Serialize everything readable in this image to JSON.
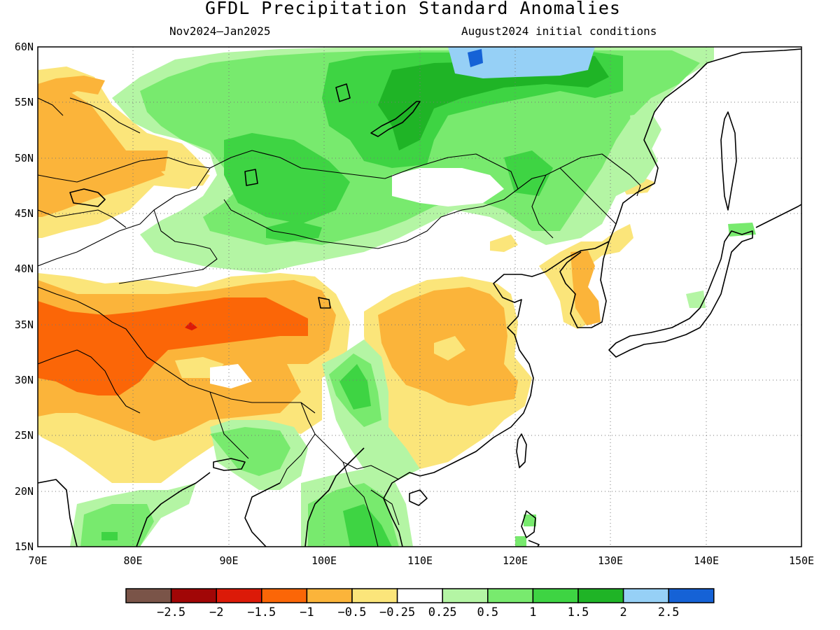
{
  "title": "GFDL Precipitation Standard Anomalies",
  "subtitle_left": "Nov2024–Jan2025",
  "subtitle_right": "August2024 initial conditions",
  "lat_ticks": [
    "15N",
    "20N",
    "25N",
    "30N",
    "35N",
    "40N",
    "45N",
    "50N",
    "55N",
    "60N"
  ],
  "lon_ticks": [
    "70E",
    "80E",
    "90E",
    "100E",
    "110E",
    "120E",
    "130E",
    "140E",
    "150E"
  ],
  "colorbar": {
    "colors": [
      "#7a5448",
      "#a10606",
      "#dc1a08",
      "#fb6607",
      "#fbb43a",
      "#fbe57a",
      "#ffffff",
      "#b4f5a4",
      "#78ea6e",
      "#3ed443",
      "#1fb426",
      "#96d0f6",
      "#1562d6"
    ],
    "labels": [
      "−2.5",
      "−2",
      "−1.5",
      "−1",
      "−0.5",
      "−0.25",
      "0.25",
      "0.5",
      "1",
      "1.5",
      "2",
      "2.5"
    ]
  },
  "colors": {
    "background": "#ffffff",
    "axis": "#000000"
  }
}
